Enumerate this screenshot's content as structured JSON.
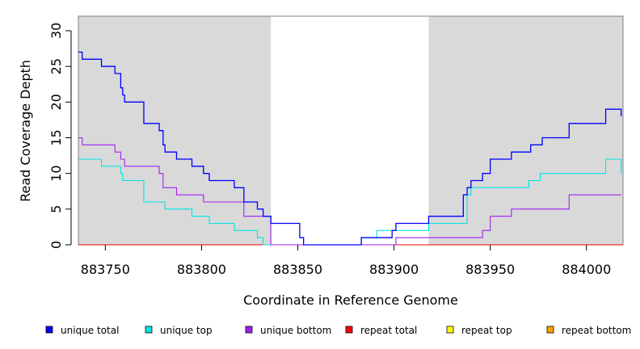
{
  "chart_data": {
    "type": "line",
    "xlabel": "Coordinate in Reference Genome",
    "ylabel": "Read Coverage Depth",
    "xlim": [
      883736,
      884019
    ],
    "ylim": [
      0,
      32
    ],
    "x_ticks": [
      883750,
      883800,
      883850,
      883900,
      883950,
      884000
    ],
    "y_ticks": [
      0,
      5,
      10,
      15,
      20,
      25,
      30
    ],
    "shaded_regions": [
      [
        883736,
        883836
      ],
      [
        883918,
        884019
      ]
    ],
    "shade_color": "#d9d9d9",
    "grid": false,
    "legend_position": "bottom",
    "series": [
      {
        "name": "unique total",
        "color": "#0000ff",
        "x": [
          883736,
          883738,
          883738,
          883748,
          883748,
          883755,
          883755,
          883758,
          883758,
          883759,
          883759,
          883760,
          883760,
          883761,
          883761,
          883770,
          883770,
          883778,
          883778,
          883780,
          883780,
          883781,
          883781,
          883787,
          883787,
          883795,
          883795,
          883801,
          883801,
          883804,
          883804,
          883817,
          883817,
          883822,
          883822,
          883829,
          883829,
          883832,
          883832,
          883836,
          883836,
          883851,
          883851,
          883853,
          883853,
          883883,
          883883,
          883899,
          883899,
          883901,
          883901,
          883918,
          883918,
          883918,
          883918,
          883936,
          883936,
          883938,
          883938,
          883940,
          883940,
          883946,
          883946,
          883950,
          883950,
          883961,
          883961,
          883971,
          883971,
          883977,
          883977,
          883991,
          883991,
          884010,
          884010,
          884018,
          884018
        ],
        "y": [
          27,
          27,
          26,
          26,
          25,
          25,
          24,
          24,
          22,
          22,
          21,
          21,
          20,
          20,
          20,
          20,
          17,
          17,
          16,
          16,
          14,
          14,
          13,
          13,
          12,
          12,
          11,
          11,
          10,
          10,
          9,
          9,
          8,
          8,
          6,
          6,
          5,
          5,
          4,
          4,
          3,
          3,
          1,
          1,
          0,
          0,
          1,
          1,
          2,
          2,
          3,
          3,
          3,
          3,
          4,
          4,
          7,
          7,
          8,
          8,
          9,
          9,
          10,
          10,
          12,
          12,
          13,
          13,
          14,
          14,
          15,
          15,
          17,
          17,
          19,
          19,
          18
        ]
      },
      {
        "name": "unique top",
        "color": "#00e5e5",
        "x": [
          883736,
          883748,
          883748,
          883758,
          883758,
          883759,
          883759,
          883770,
          883770,
          883781,
          883781,
          883795,
          883795,
          883804,
          883804,
          883817,
          883817,
          883829,
          883829,
          883832,
          883832,
          883883,
          883883,
          883891,
          883891,
          883899,
          883899,
          883918,
          883918,
          883938,
          883938,
          883940,
          883940,
          883970,
          883970,
          883976,
          883976,
          884010,
          884010,
          884018,
          884018
        ],
        "y": [
          12,
          12,
          11,
          11,
          10,
          10,
          9,
          9,
          6,
          6,
          5,
          5,
          4,
          4,
          3,
          3,
          2,
          2,
          1,
          1,
          0,
          0,
          1,
          1,
          2,
          2,
          2,
          2,
          3,
          3,
          7,
          7,
          8,
          8,
          9,
          9,
          10,
          10,
          12,
          12,
          10
        ]
      },
      {
        "name": "unique bottom",
        "color": "#a020f0",
        "x": [
          883736,
          883738,
          883738,
          883755,
          883755,
          883758,
          883758,
          883760,
          883760,
          883778,
          883778,
          883780,
          883780,
          883787,
          883787,
          883801,
          883801,
          883822,
          883822,
          883836,
          883836,
          883901,
          883901,
          883946,
          883946,
          883950,
          883950,
          883961,
          883961,
          883991,
          883991,
          884018
        ],
        "y": [
          15,
          15,
          14,
          14,
          13,
          13,
          12,
          12,
          11,
          11,
          10,
          10,
          8,
          8,
          7,
          7,
          6,
          6,
          4,
          4,
          0,
          0,
          1,
          1,
          2,
          2,
          4,
          4,
          5,
          5,
          7,
          7
        ]
      },
      {
        "name": "repeat total",
        "color": "#ff0000",
        "x": [
          883736,
          884019
        ],
        "y": [
          0,
          0
        ]
      },
      {
        "name": "repeat top",
        "color": "#ffff00",
        "x": [
          883736,
          884019
        ],
        "y": [
          0,
          0
        ]
      },
      {
        "name": "repeat bottom",
        "color": "#ffa500",
        "x": [
          883736,
          884019
        ],
        "y": [
          0,
          0
        ]
      }
    ]
  }
}
